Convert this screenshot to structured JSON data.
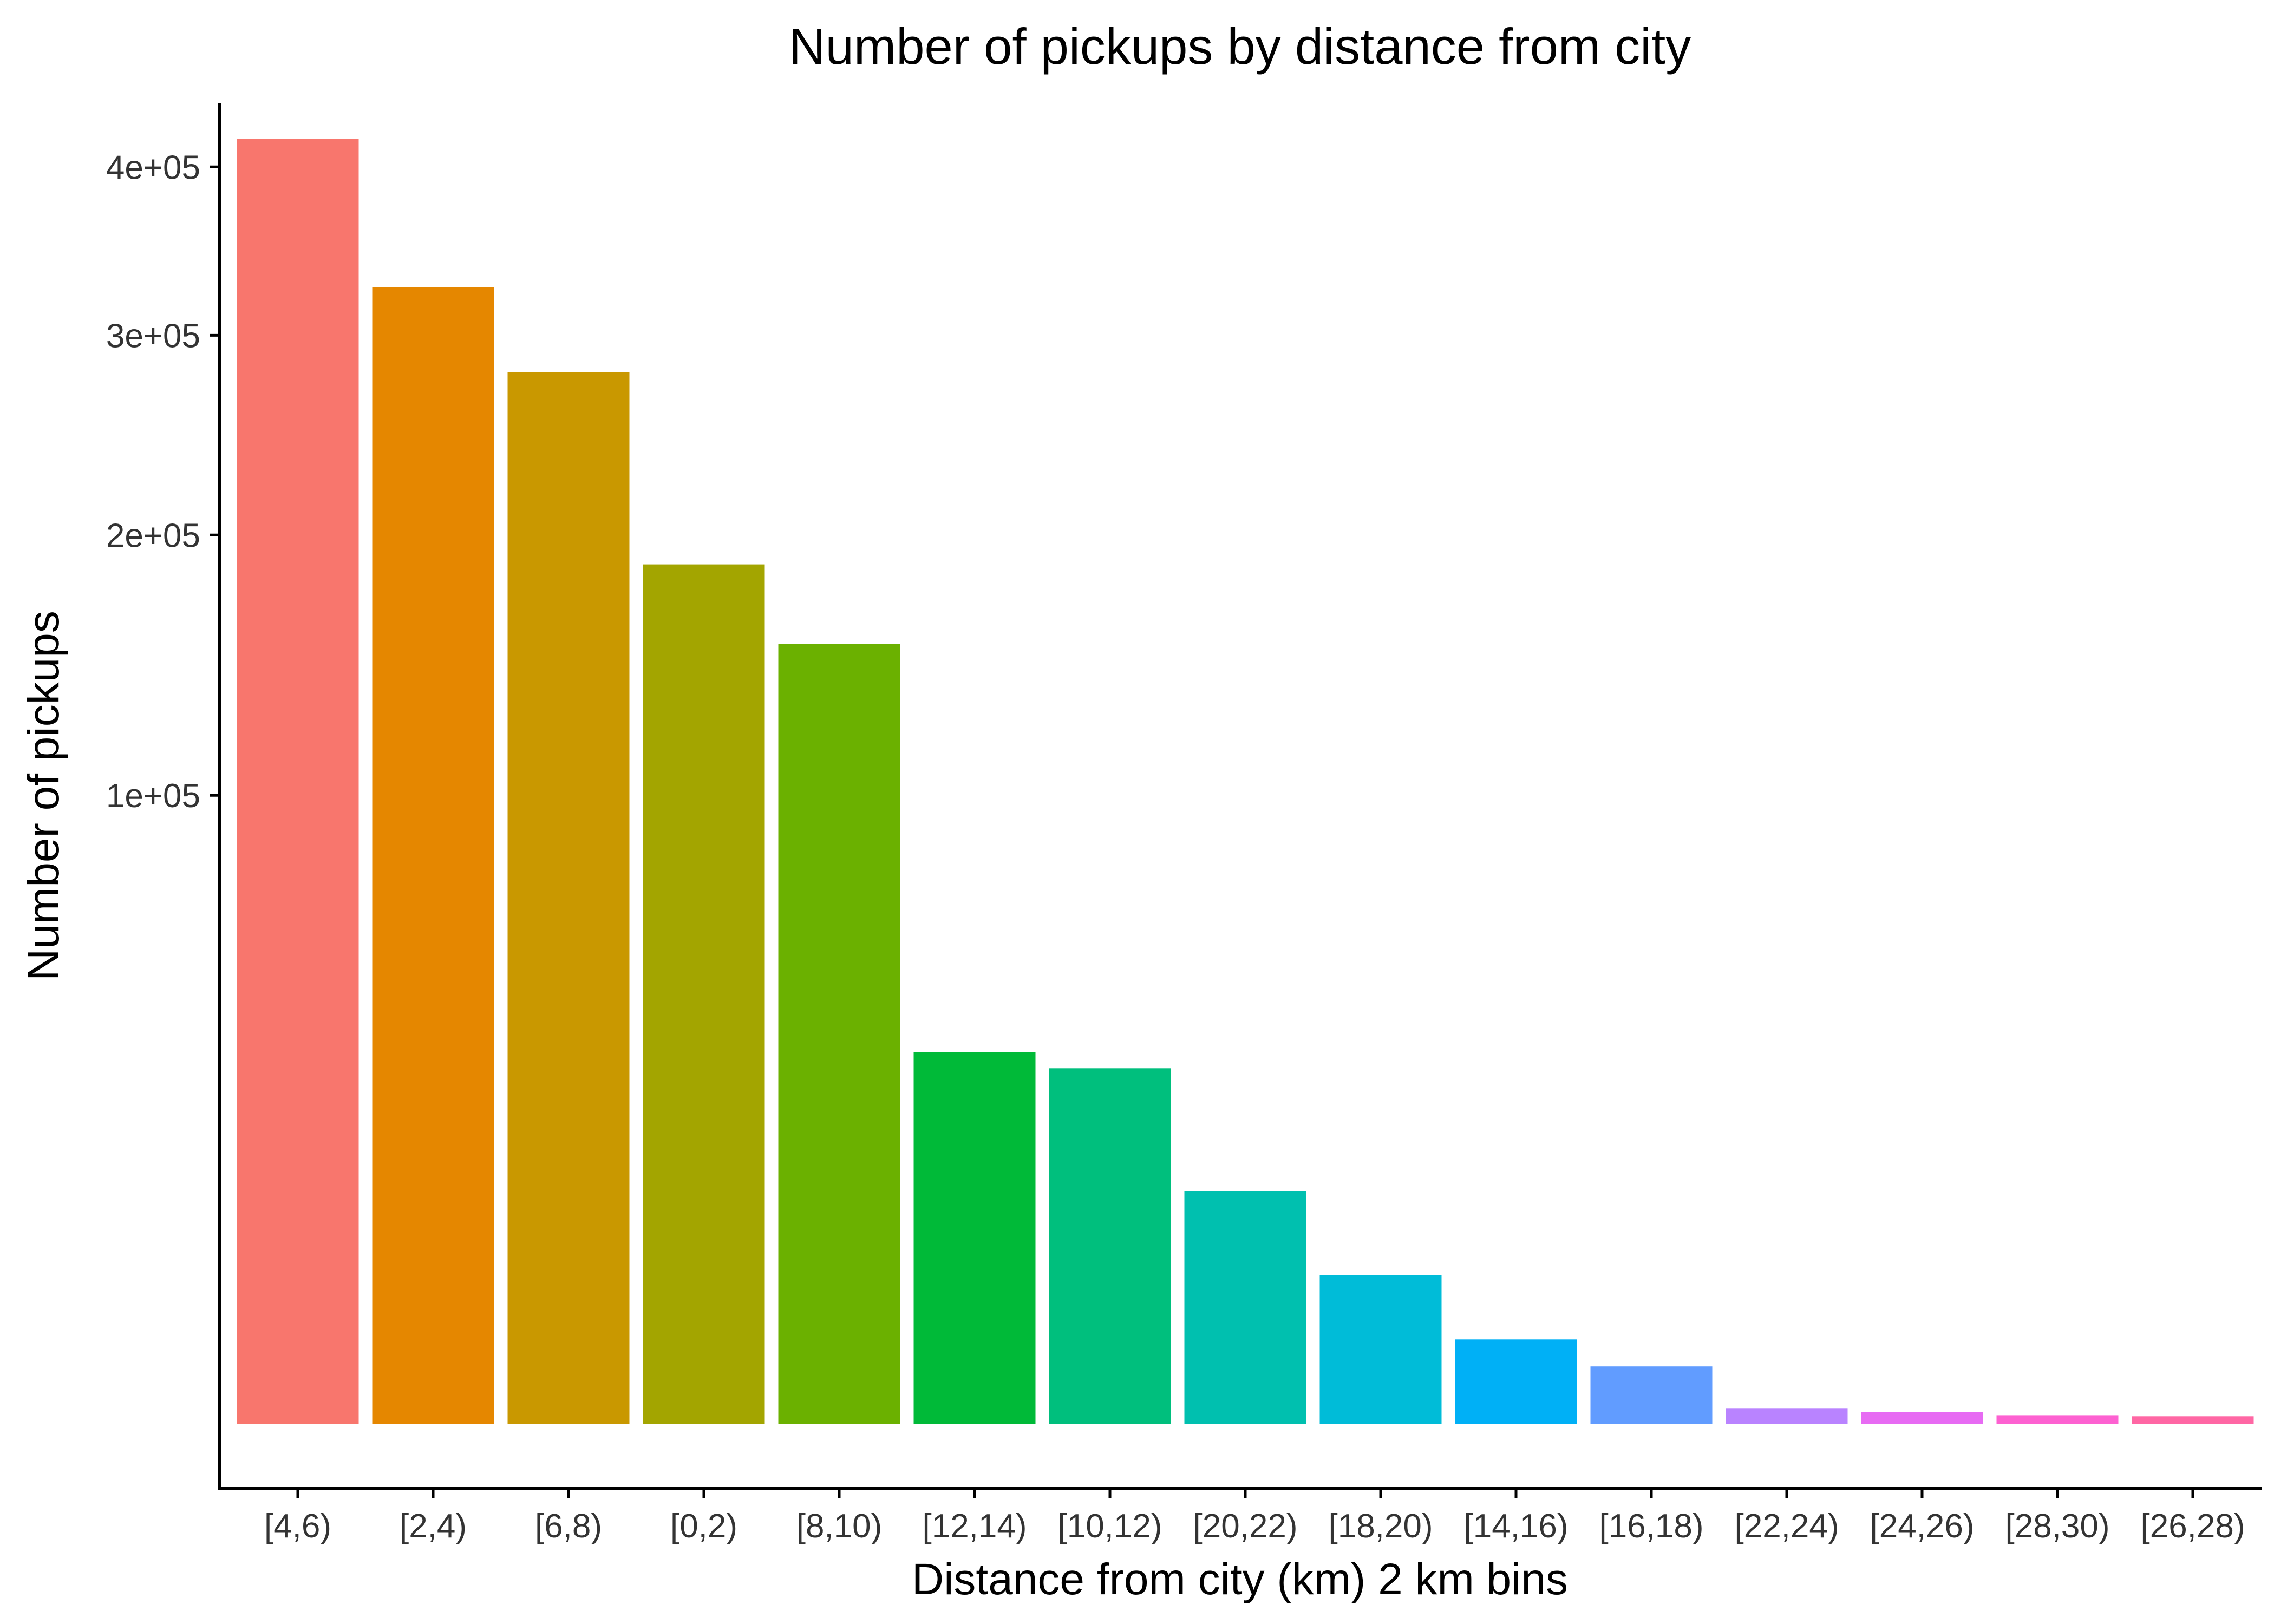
{
  "chart_data": {
    "type": "bar",
    "title": "Number of pickups by distance from city",
    "xlabel": "Distance from city (km) 2 km bins",
    "ylabel": "Number of pickups",
    "y_scale": "sqrt",
    "ylim": [
      0,
      440000
    ],
    "y_ticks": [
      {
        "value": 100000,
        "label": "1e+05"
      },
      {
        "value": 200000,
        "label": "2e+05"
      },
      {
        "value": 300000,
        "label": "3e+05"
      },
      {
        "value": 400000,
        "label": "4e+05"
      }
    ],
    "grid": false,
    "legend": "none",
    "categories": [
      "[4,6)",
      "[2,4)",
      "[6,8)",
      "[0,2)",
      "[8,10)",
      "[12,14)",
      "[10,12)",
      "[20,22)",
      "[18,20)",
      "[14,16)",
      "[16,18)",
      "[22,24)",
      "[24,26)",
      "[28,30)",
      "[26,28)"
    ],
    "values": [
      418000,
      327000,
      280000,
      187000,
      154000,
      35000,
      32000,
      13700,
      5600,
      1800,
      830,
      61,
      35,
      18,
      14
    ],
    "colors": [
      "#F8766D",
      "#E58700",
      "#C99800",
      "#A3A500",
      "#6BB100",
      "#00BA38",
      "#00BF7D",
      "#00C0AF",
      "#00BCD8",
      "#00B0F6",
      "#619CFF",
      "#B983FF",
      "#E76BF3",
      "#FD61D1",
      "#FF67A4"
    ]
  }
}
